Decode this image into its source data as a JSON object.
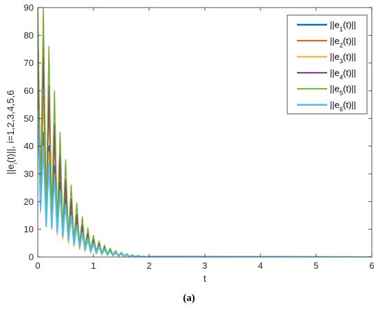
{
  "chart_data": {
    "type": "line",
    "title": "",
    "xlabel": "t",
    "ylabel": "||e_i(t)||, i=1,2,3,4,5,6",
    "xlim": [
      0,
      6
    ],
    "ylim": [
      0,
      90
    ],
    "xticks": [
      0,
      1,
      2,
      3,
      4,
      5,
      6
    ],
    "yticks": [
      0,
      10,
      20,
      30,
      40,
      50,
      60,
      70,
      80,
      90
    ],
    "grid": false,
    "legend_position": "top-right",
    "series": [
      {
        "name": "||e_1(t)||",
        "color": "#0072BD",
        "width": 2.0,
        "peaks": [
          [
            0.0,
            60
          ],
          [
            0.1,
            45
          ],
          [
            0.2,
            40
          ],
          [
            0.3,
            33
          ],
          [
            0.4,
            27
          ],
          [
            0.5,
            21
          ],
          [
            0.6,
            16
          ],
          [
            0.7,
            12
          ],
          [
            0.8,
            9
          ],
          [
            0.9,
            7
          ],
          [
            1.0,
            5.5
          ],
          [
            1.1,
            4.5
          ],
          [
            1.2,
            3.5
          ],
          [
            1.3,
            2.8
          ],
          [
            1.4,
            2
          ],
          [
            1.5,
            1.5
          ],
          [
            1.6,
            1
          ],
          [
            1.7,
            0.7
          ],
          [
            1.8,
            0.5
          ],
          [
            1.9,
            0.3
          ],
          [
            2.0,
            0.2
          ]
        ],
        "troughs": [
          [
            0.05,
            18
          ],
          [
            0.15,
            13
          ],
          [
            0.25,
            11
          ],
          [
            0.35,
            9
          ],
          [
            0.45,
            7.5
          ],
          [
            0.55,
            6
          ],
          [
            0.65,
            4.5
          ],
          [
            0.75,
            3.5
          ],
          [
            0.85,
            2.5
          ],
          [
            0.95,
            1.8
          ],
          [
            1.05,
            1.4
          ],
          [
            1.15,
            1
          ],
          [
            1.25,
            0.7
          ],
          [
            1.35,
            0.5
          ],
          [
            1.45,
            0.35
          ],
          [
            1.55,
            0.25
          ],
          [
            1.65,
            0.15
          ],
          [
            1.75,
            0.1
          ],
          [
            1.85,
            0.05
          ],
          [
            1.95,
            0.03
          ]
        ]
      },
      {
        "name": "||e_2(t)||",
        "color": "#D95319",
        "width": 1.5,
        "peaks": [
          [
            0.0,
            75
          ],
          [
            0.1,
            82
          ],
          [
            0.2,
            55
          ],
          [
            0.3,
            43
          ],
          [
            0.4,
            33
          ],
          [
            0.5,
            25
          ],
          [
            0.6,
            19
          ],
          [
            0.7,
            14
          ],
          [
            0.8,
            10.5
          ],
          [
            0.9,
            8
          ],
          [
            1.0,
            6
          ],
          [
            1.1,
            4.5
          ],
          [
            1.2,
            3.5
          ],
          [
            1.3,
            2.6
          ],
          [
            1.4,
            2
          ],
          [
            1.5,
            1.4
          ],
          [
            1.6,
            1
          ],
          [
            1.7,
            0.7
          ],
          [
            1.8,
            0.4
          ],
          [
            1.9,
            0.2
          ],
          [
            2.0,
            0.1
          ]
        ],
        "troughs": [
          [
            0.05,
            20
          ],
          [
            0.15,
            14
          ],
          [
            0.25,
            12
          ],
          [
            0.35,
            10
          ],
          [
            0.45,
            8
          ],
          [
            0.55,
            6.5
          ],
          [
            0.65,
            5
          ],
          [
            0.75,
            4
          ],
          [
            0.85,
            3
          ],
          [
            0.95,
            2.2
          ],
          [
            1.05,
            1.6
          ],
          [
            1.15,
            1.2
          ],
          [
            1.25,
            0.9
          ],
          [
            1.35,
            0.6
          ],
          [
            1.45,
            0.4
          ],
          [
            1.55,
            0.3
          ],
          [
            1.65,
            0.2
          ],
          [
            1.75,
            0.1
          ],
          [
            1.85,
            0.05
          ],
          [
            1.95,
            0.03
          ]
        ]
      },
      {
        "name": "||e_3(t)||",
        "color": "#EDB120",
        "width": 1.5,
        "peaks": [
          [
            0.0,
            50
          ],
          [
            0.1,
            58
          ],
          [
            0.2,
            38
          ],
          [
            0.3,
            30
          ],
          [
            0.4,
            24
          ],
          [
            0.5,
            19
          ],
          [
            0.6,
            14
          ],
          [
            0.7,
            11
          ],
          [
            0.8,
            8
          ],
          [
            0.9,
            6
          ],
          [
            1.0,
            4.5
          ],
          [
            1.1,
            3.5
          ],
          [
            1.2,
            2.6
          ],
          [
            1.3,
            2
          ],
          [
            1.4,
            1.4
          ],
          [
            1.5,
            1
          ],
          [
            1.6,
            0.7
          ],
          [
            1.7,
            0.5
          ],
          [
            1.8,
            0.3
          ],
          [
            1.9,
            0.2
          ],
          [
            2.0,
            0.1
          ]
        ],
        "troughs": [
          [
            0.05,
            16
          ],
          [
            0.15,
            12
          ],
          [
            0.25,
            10
          ],
          [
            0.35,
            8
          ],
          [
            0.45,
            6.5
          ],
          [
            0.55,
            5
          ],
          [
            0.65,
            3.8
          ],
          [
            0.75,
            2.8
          ],
          [
            0.85,
            2
          ],
          [
            0.95,
            1.5
          ],
          [
            1.05,
            1.1
          ],
          [
            1.15,
            0.8
          ],
          [
            1.25,
            0.6
          ],
          [
            1.35,
            0.4
          ],
          [
            1.45,
            0.3
          ],
          [
            1.55,
            0.2
          ],
          [
            1.65,
            0.12
          ],
          [
            1.75,
            0.08
          ],
          [
            1.85,
            0.05
          ],
          [
            1.95,
            0.03
          ]
        ]
      },
      {
        "name": "||e_4(t)||",
        "color": "#7E2F8E",
        "width": 1.5,
        "peaks": [
          [
            0.0,
            88
          ],
          [
            0.1,
            72
          ],
          [
            0.2,
            62
          ],
          [
            0.3,
            48
          ],
          [
            0.4,
            37
          ],
          [
            0.5,
            28
          ],
          [
            0.6,
            21
          ],
          [
            0.7,
            15.5
          ],
          [
            0.8,
            11.5
          ],
          [
            0.9,
            8.5
          ],
          [
            1.0,
            6.3
          ],
          [
            1.1,
            4.8
          ],
          [
            1.2,
            3.6
          ],
          [
            1.3,
            2.7
          ],
          [
            1.4,
            2
          ],
          [
            1.5,
            1.5
          ],
          [
            1.6,
            1
          ],
          [
            1.7,
            0.7
          ],
          [
            1.8,
            0.45
          ],
          [
            1.9,
            0.25
          ],
          [
            2.0,
            0.12
          ]
        ],
        "troughs": [
          [
            0.05,
            22
          ],
          [
            0.15,
            16
          ],
          [
            0.25,
            13
          ],
          [
            0.35,
            11
          ],
          [
            0.45,
            9
          ],
          [
            0.55,
            7
          ],
          [
            0.65,
            5.5
          ],
          [
            0.75,
            4.2
          ],
          [
            0.85,
            3.2
          ],
          [
            0.95,
            2.4
          ],
          [
            1.05,
            1.8
          ],
          [
            1.15,
            1.3
          ],
          [
            1.25,
            1
          ],
          [
            1.35,
            0.7
          ],
          [
            1.45,
            0.5
          ],
          [
            1.55,
            0.35
          ],
          [
            1.65,
            0.22
          ],
          [
            1.75,
            0.13
          ],
          [
            1.85,
            0.07
          ],
          [
            1.95,
            0.04
          ]
        ]
      },
      {
        "name": "||e_5(t)||",
        "color": "#77AC30",
        "width": 1.5,
        "peaks": [
          [
            0.0,
            90
          ],
          [
            0.1,
            90
          ],
          [
            0.2,
            76
          ],
          [
            0.3,
            60
          ],
          [
            0.4,
            45
          ],
          [
            0.5,
            35
          ],
          [
            0.6,
            26
          ],
          [
            0.7,
            19.5
          ],
          [
            0.8,
            14.5
          ],
          [
            0.9,
            10.5
          ],
          [
            1.0,
            7.8
          ],
          [
            1.1,
            5.8
          ],
          [
            1.2,
            4.3
          ],
          [
            1.3,
            3.2
          ],
          [
            1.4,
            2.3
          ],
          [
            1.5,
            1.7
          ],
          [
            1.6,
            1.2
          ],
          [
            1.7,
            0.8
          ],
          [
            1.8,
            0.5
          ],
          [
            1.9,
            0.3
          ],
          [
            2.0,
            0.15
          ]
        ],
        "troughs": [
          [
            0.05,
            24
          ],
          [
            0.15,
            18
          ],
          [
            0.25,
            15
          ],
          [
            0.35,
            12
          ],
          [
            0.45,
            10
          ],
          [
            0.55,
            8
          ],
          [
            0.65,
            6.2
          ],
          [
            0.75,
            4.8
          ],
          [
            0.85,
            3.6
          ],
          [
            0.95,
            2.7
          ],
          [
            1.05,
            2
          ],
          [
            1.15,
            1.5
          ],
          [
            1.25,
            1.1
          ],
          [
            1.35,
            0.8
          ],
          [
            1.45,
            0.55
          ],
          [
            1.55,
            0.38
          ],
          [
            1.65,
            0.25
          ],
          [
            1.75,
            0.15
          ],
          [
            1.85,
            0.08
          ],
          [
            1.95,
            0.04
          ]
        ]
      },
      {
        "name": "||e_6(t)||",
        "color": "#4DBEEE",
        "width": 2.0,
        "peaks": [
          [
            0.0,
            53
          ],
          [
            0.1,
            40
          ],
          [
            0.2,
            34
          ],
          [
            0.3,
            29
          ],
          [
            0.4,
            24
          ],
          [
            0.5,
            19
          ],
          [
            0.6,
            15
          ],
          [
            0.7,
            11.5
          ],
          [
            0.8,
            8.8
          ],
          [
            0.9,
            6.7
          ],
          [
            1.0,
            5
          ],
          [
            1.1,
            3.8
          ],
          [
            1.2,
            2.9
          ],
          [
            1.3,
            2.2
          ],
          [
            1.4,
            1.6
          ],
          [
            1.5,
            1.2
          ],
          [
            1.6,
            0.8
          ],
          [
            1.7,
            0.55
          ],
          [
            1.8,
            0.35
          ],
          [
            1.9,
            0.2
          ],
          [
            2.0,
            0.1
          ]
        ],
        "troughs": [
          [
            0.05,
            17
          ],
          [
            0.15,
            11
          ],
          [
            0.25,
            10.5
          ],
          [
            0.35,
            9
          ],
          [
            0.45,
            7.5
          ],
          [
            0.55,
            6
          ],
          [
            0.65,
            4.6
          ],
          [
            0.75,
            3.5
          ],
          [
            0.85,
            2.6
          ],
          [
            0.95,
            2
          ],
          [
            1.05,
            1.5
          ],
          [
            1.15,
            1.1
          ],
          [
            1.25,
            0.8
          ],
          [
            1.35,
            0.55
          ],
          [
            1.45,
            0.4
          ],
          [
            1.55,
            0.28
          ],
          [
            1.65,
            0.18
          ],
          [
            1.75,
            0.1
          ],
          [
            1.85,
            0.06
          ],
          [
            1.95,
            0.03
          ]
        ]
      }
    ]
  },
  "caption": "(a)"
}
